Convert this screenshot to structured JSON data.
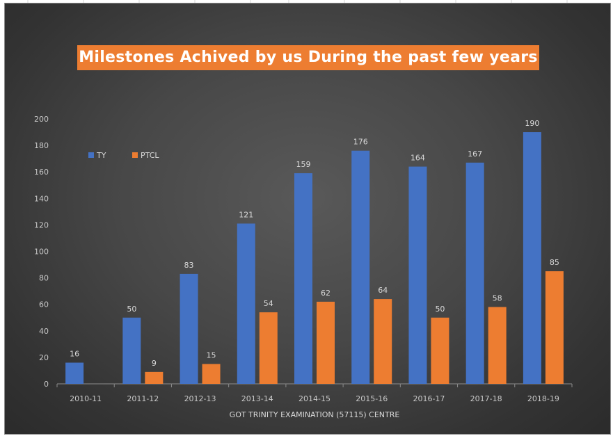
{
  "chart_data": {
    "type": "bar",
    "title": "Milestones Achived by us During the past few years",
    "xlabel": "GOT TRINITY EXAMINATION (57115)  CENTRE",
    "ylabel": "",
    "categories": [
      "2010-11",
      "2011-12",
      "2012-13",
      "2013-14",
      "2014-15",
      "2015-16",
      "2016-17",
      "2017-18",
      "2018-19"
    ],
    "series": [
      {
        "name": "TY",
        "color": "#4472c4",
        "values": [
          16,
          50,
          83,
          121,
          159,
          176,
          164,
          167,
          190
        ]
      },
      {
        "name": "PTCL",
        "color": "#ed7d31",
        "values": [
          null,
          9,
          15,
          54,
          62,
          64,
          50,
          58,
          85
        ]
      }
    ],
    "ylim": [
      0,
      200
    ],
    "yticks": [
      0,
      20,
      40,
      60,
      80,
      100,
      120,
      140,
      160,
      180,
      200
    ],
    "grid": false,
    "legend_position": "top-left",
    "data_labels": true
  }
}
